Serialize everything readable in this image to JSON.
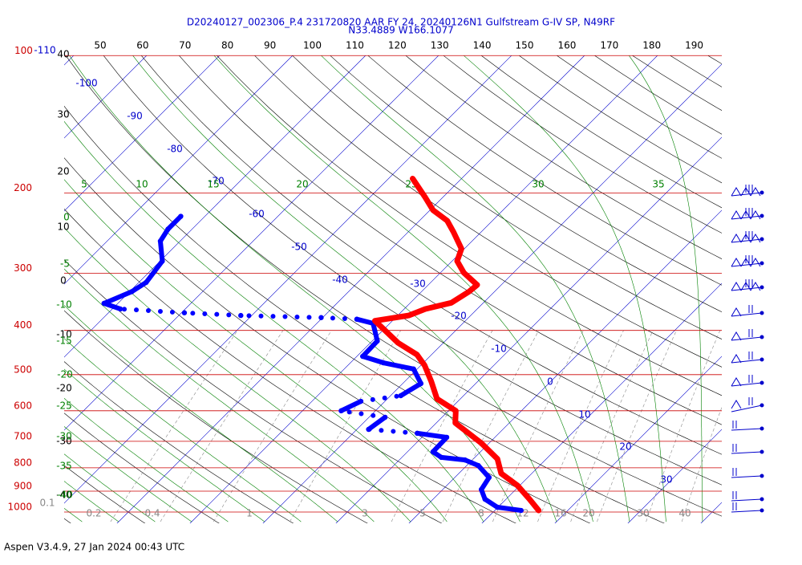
{
  "header": {
    "title": "D20240127_002306_P.4 231720820 AAR FY 24, 20240126N1 Gulfstream G-IV SP, N49RF",
    "subtitle": "N33.4889 W166.1077"
  },
  "footer": "Aspen V3.4.9, 27 Jan 2024  00:43 UTC",
  "skewt": {
    "pressure_labels": [
      100,
      200,
      300,
      400,
      500,
      600,
      700,
      800,
      900,
      1000
    ],
    "isotherm_labels": [
      -110,
      -100,
      -90,
      -80,
      -70,
      -60,
      -50,
      -40,
      -30,
      -20,
      -10,
      0,
      10,
      20,
      30
    ],
    "dry_adiabat_top": [
      50,
      60,
      70,
      80,
      90,
      100,
      110,
      120,
      130,
      140,
      150,
      160,
      170,
      180,
      190
    ],
    "dry_adiabat_left": [
      40,
      30,
      20,
      10,
      0,
      -10,
      -20,
      -30,
      -40
    ],
    "moist_adiabat_top": [
      5,
      10,
      15,
      20,
      25,
      30,
      35
    ],
    "moist_adiabat_left": [
      0,
      -5,
      -10,
      -15,
      -20,
      -25,
      -30,
      -35,
      -40
    ],
    "mixing_ratio_labels": [
      0.1,
      0.2,
      0.4,
      1,
      3,
      5,
      8,
      12,
      16,
      20,
      30,
      40
    ],
    "temperature": {
      "color": "#ff0000",
      "pressure": [
        992,
        937,
        875,
        823,
        765,
        706,
        638,
        600,
        565,
        517,
        477,
        452,
        426,
        381,
        371,
        359,
        348,
        329,
        318,
        299,
        282,
        265,
        244,
        230,
        218,
        204,
        186
      ],
      "values": [
        16.0,
        13.2,
        9.7,
        5.8,
        3.3,
        -1.1,
        -7.4,
        -9.0,
        -13.2,
        -16.4,
        -19.5,
        -22.0,
        -26.2,
        -32.4,
        -28.5,
        -27.1,
        -24.4,
        -23.5,
        -23.3,
        -26.8,
        -29.3,
        -30.4,
        -33.7,
        -36.2,
        -39.6,
        -42.5,
        -46.7
      ]
    },
    "dewpoint": {
      "color": "#0000ff",
      "pressure": [
        992,
        976,
        937,
        893,
        840,
        791,
        769,
        759,
        738,
        686,
        672,
        659,
        620,
        600,
        572,
        556,
        523,
        486,
        471,
        456,
        422,
        386,
        378,
        375,
        371,
        366,
        359,
        349,
        329,
        314,
        282,
        255,
        240,
        225
      ],
      "values": [
        13.6,
        9.9,
        7.1,
        5.3,
        4.7,
        1.6,
        -1.0,
        -4.6,
        -6.5,
        -6.6,
        -11.2,
        -18.4,
        -17.8,
        -24.7,
        -23.3,
        -18.6,
        -17.5,
        -20.5,
        -25.5,
        -29.2,
        -29.3,
        -32.3,
        -35.1,
        -40.2,
        -51.5,
        -59.6,
        -68.9,
        -71.9,
        -69.7,
        -69.0,
        -69.7,
        -72.7,
        -73.3,
        -73.3
      ]
    }
  }
}
